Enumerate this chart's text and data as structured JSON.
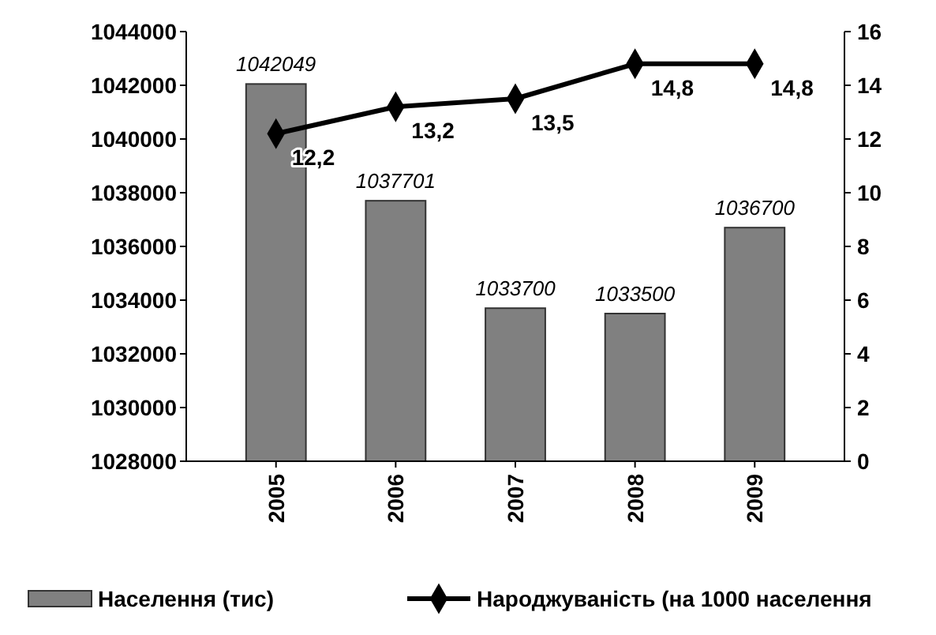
{
  "chart_data": {
    "type": "bar",
    "categories": [
      "2005",
      "2006",
      "2007",
      "2008",
      "2009"
    ],
    "series": [
      {
        "name": "Населення (тис)",
        "color": "#808080",
        "values": [
          1042049,
          1037701,
          1033700,
          1033500,
          1036700
        ],
        "value_labels": [
          "1042049",
          "1037701",
          "1033700",
          "1033500",
          "1036700"
        ]
      },
      {
        "name": "Народжуваність (на 1000 населення",
        "type": "line",
        "axis": "y2",
        "color": "#000000",
        "marker": "diamond",
        "values": [
          12.2,
          13.2,
          13.5,
          14.8,
          14.8
        ],
        "value_labels": [
          "12,2",
          "13,2",
          "13,5",
          "14,8",
          "14,8"
        ]
      }
    ],
    "ylim": [
      1028000,
      1044000
    ],
    "yticks": [
      1028000,
      1030000,
      1032000,
      1034000,
      1036000,
      1038000,
      1040000,
      1042000,
      1044000
    ],
    "y2lim": [
      0,
      16
    ],
    "y2ticks": [
      0,
      2,
      4,
      6,
      8,
      10,
      12,
      14,
      16
    ],
    "grid": false,
    "legend": "bottom"
  }
}
